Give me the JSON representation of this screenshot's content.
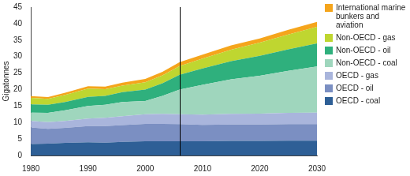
{
  "chart_data": {
    "type": "area",
    "stacked": true,
    "grid": false,
    "legend": "right",
    "y_label": "Gigatonnes",
    "x": [
      1980,
      1983,
      1986,
      1990,
      1993,
      1996,
      2000,
      2003,
      2006,
      2010,
      2015,
      2020,
      2025,
      2030
    ],
    "xlim": [
      1980,
      2030
    ],
    "xticks": [
      1980,
      1990,
      2000,
      2010,
      2020,
      2030
    ],
    "ylim": [
      0,
      45
    ],
    "yticks": [
      0,
      5,
      10,
      15,
      20,
      25,
      30,
      35,
      40,
      45
    ],
    "vline": 2006,
    "series": [
      {
        "name": "OECD - coal",
        "color": "#2e5f96",
        "values": [
          3.5,
          3.6,
          3.8,
          4.0,
          3.9,
          4.1,
          4.3,
          4.3,
          4.3,
          4.3,
          4.4,
          4.4,
          4.5,
          4.5
        ]
      },
      {
        "name": "OECD - oil",
        "color": "#7b8fc2",
        "values": [
          5.0,
          4.5,
          4.6,
          4.9,
          5.0,
          5.1,
          5.3,
          5.3,
          5.2,
          5.0,
          5.0,
          5.0,
          5.0,
          5.0
        ]
      },
      {
        "name": "OECD - gas",
        "color": "#a9b5dc",
        "values": [
          2.0,
          2.0,
          2.1,
          2.3,
          2.5,
          2.7,
          2.9,
          3.0,
          3.0,
          3.1,
          3.2,
          3.3,
          3.4,
          3.5
        ]
      },
      {
        "name": "Non-OECD - coal",
        "color": "#9fd6bd",
        "values": [
          2.5,
          2.8,
          3.2,
          3.8,
          4.0,
          4.3,
          4.0,
          5.5,
          7.5,
          9.0,
          10.5,
          11.5,
          12.8,
          14.0
        ]
      },
      {
        "name": "Non-OECD - oil",
        "color": "#2fb07d",
        "values": [
          2.5,
          2.5,
          2.5,
          2.8,
          2.7,
          3.0,
          3.5,
          3.8,
          4.5,
          5.0,
          5.5,
          6.0,
          6.5,
          7.0
        ]
      },
      {
        "name": "Non-OECD - gas",
        "color": "#bfd630",
        "values": [
          2.0,
          1.8,
          2.2,
          2.5,
          2.0,
          2.0,
          2.2,
          2.4,
          2.6,
          3.0,
          3.5,
          4.0,
          4.5,
          5.0
        ]
      },
      {
        "name": "International marine bunkers and aviation",
        "color": "#f5a51c",
        "values": [
          0.5,
          0.5,
          0.6,
          0.7,
          0.8,
          0.9,
          1.0,
          1.1,
          1.2,
          1.2,
          1.3,
          1.3,
          1.4,
          1.5
        ]
      }
    ]
  }
}
